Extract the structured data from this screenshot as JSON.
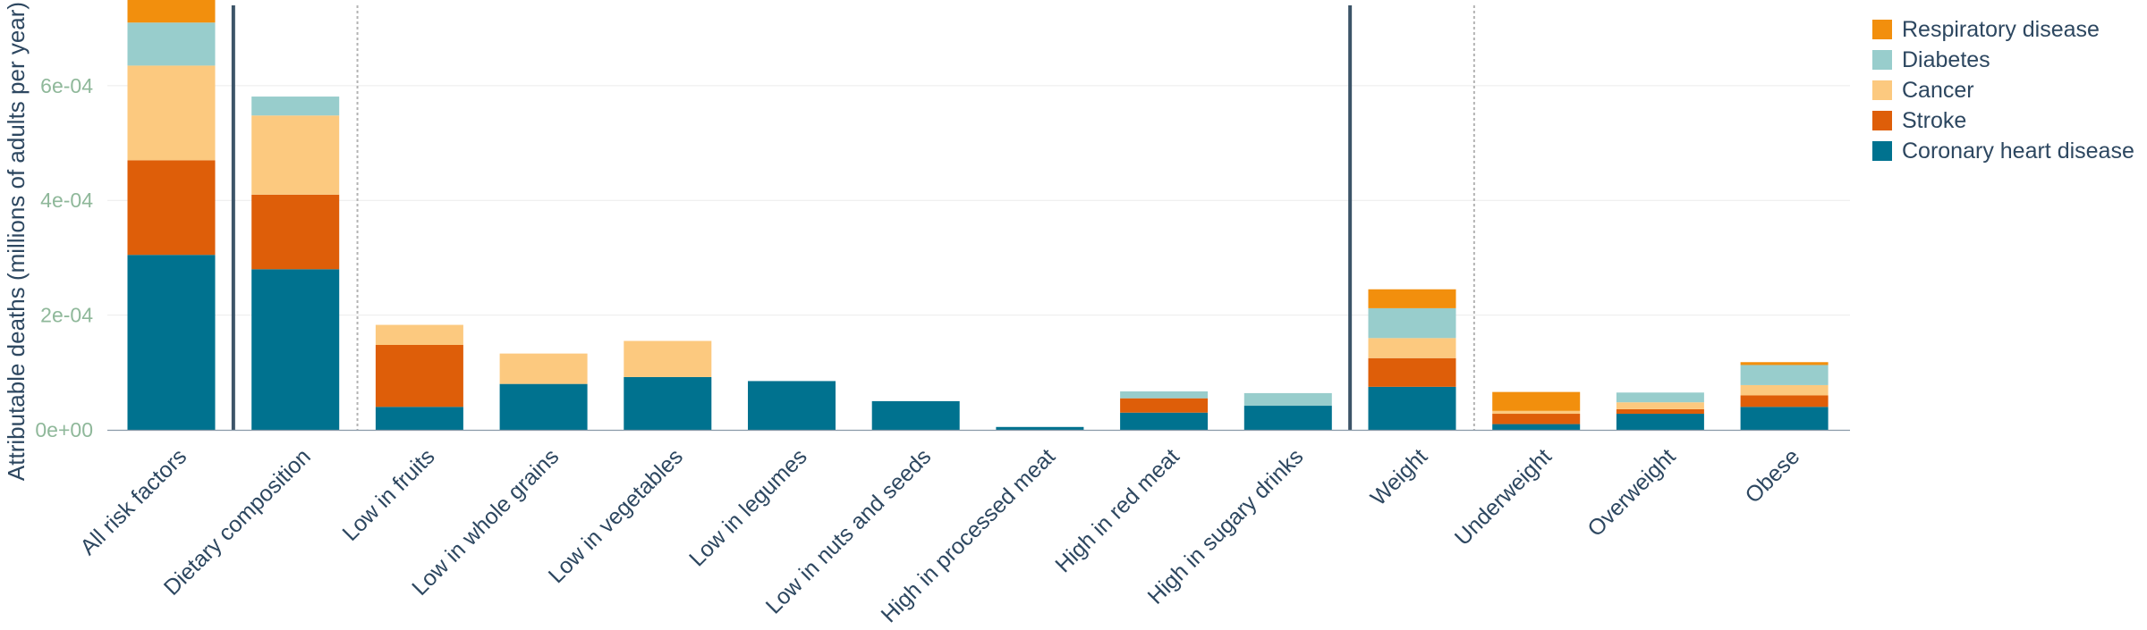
{
  "chart_data": {
    "type": "bar",
    "stacked": true,
    "title": "",
    "xlabel": "",
    "ylabel": "Attributable deaths (millions of adults per year)",
    "ylim": [
      0,
      0.00074
    ],
    "grid": true,
    "legend_position": "top-right",
    "y_ticks": [
      {
        "value": 0,
        "label": "0e+00"
      },
      {
        "value": 0.0002,
        "label": "2e-04"
      },
      {
        "value": 0.0004,
        "label": "4e-04"
      },
      {
        "value": 0.0006,
        "label": "6e-04"
      }
    ],
    "categories": [
      "All risk factors",
      "Dietary composition",
      "Low in fruits",
      "Low in whole grains",
      "Low in vegetables",
      "Low in legumes",
      "Low in nuts and seeds",
      "High in processed meat",
      "High in red meat",
      "High in sugary drinks",
      "Weight",
      "Underweight",
      "Overweight",
      "Obese"
    ],
    "group_separators": [
      {
        "after_index": 0,
        "style": "solid"
      },
      {
        "after_index": 1,
        "style": "dotted"
      },
      {
        "after_index": 9,
        "style": "solid"
      },
      {
        "after_index": 10,
        "style": "dotted"
      }
    ],
    "series": [
      {
        "name": "Coronary heart disease",
        "color": "#00728f",
        "values": [
          0.000305,
          0.00028,
          4e-05,
          8e-05,
          9.2e-05,
          8.5e-05,
          5e-05,
          5e-06,
          3e-05,
          4.2e-05,
          7.5e-05,
          1e-05,
          2.8e-05,
          4e-05
        ]
      },
      {
        "name": "Stroke",
        "color": "#de5e09",
        "values": [
          0.000165,
          0.00013,
          0.000108,
          0,
          0,
          0,
          0,
          0,
          2.5e-05,
          0,
          5e-05,
          1.8e-05,
          8e-06,
          2e-05
        ]
      },
      {
        "name": "Cancer",
        "color": "#fcc97f",
        "values": [
          0.000165,
          0.000138,
          3.5e-05,
          5.3e-05,
          6.3e-05,
          0,
          0,
          0,
          0,
          0,
          3.5e-05,
          5e-06,
          1.2e-05,
          1.8e-05
        ]
      },
      {
        "name": "Diabetes",
        "color": "#98cdcc",
        "values": [
          7.5e-05,
          3.3e-05,
          0,
          0,
          0,
          0,
          0,
          0,
          1.2e-05,
          2.2e-05,
          5.2e-05,
          0,
          1.7e-05,
          3.5e-05
        ]
      },
      {
        "name": "Respiratory disease",
        "color": "#f28f0d",
        "values": [
          4e-05,
          0,
          0,
          0,
          0,
          0,
          0,
          0,
          0,
          0,
          3.3e-05,
          3.3e-05,
          0,
          5e-06
        ]
      }
    ],
    "legend_order": [
      "Respiratory disease",
      "Diabetes",
      "Cancer",
      "Stroke",
      "Coronary heart disease"
    ]
  }
}
